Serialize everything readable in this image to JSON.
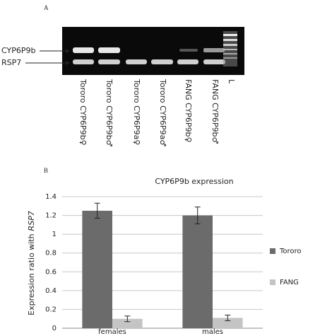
{
  "panel_a": {
    "label": "A",
    "bands": [
      "CYP6P9b",
      "RSP7"
    ],
    "lanes": [
      "Tororo CYP6P9b♀",
      "Tororo CYP6P9b♂",
      "Tororo CYP6P9a♀",
      "Tororo CYP6P9a♂",
      "FANG CYP6P9b♀",
      "FANG CYP6P9b♂",
      "L"
    ]
  },
  "chart_data": {
    "type": "bar",
    "panel_label": "B",
    "title": "CYP6P9b expression",
    "ylabel": [
      "Expression ratio with",
      "RSP7"
    ],
    "categories": [
      "females",
      "males"
    ],
    "series": [
      {
        "name": "Tororo",
        "color": "#6b6b6b",
        "values": [
          1.25,
          1.2
        ],
        "errors": [
          0.08,
          0.09
        ]
      },
      {
        "name": "FANG",
        "color": "#c4c4c4",
        "values": [
          0.1,
          0.11
        ],
        "errors": [
          0.03,
          0.03
        ]
      }
    ],
    "ylim": [
      0,
      1.4
    ],
    "yticks": [
      0,
      0.2,
      0.4,
      0.6,
      0.8,
      1,
      1.2,
      1.4
    ],
    "grid": true,
    "legend": "right"
  }
}
